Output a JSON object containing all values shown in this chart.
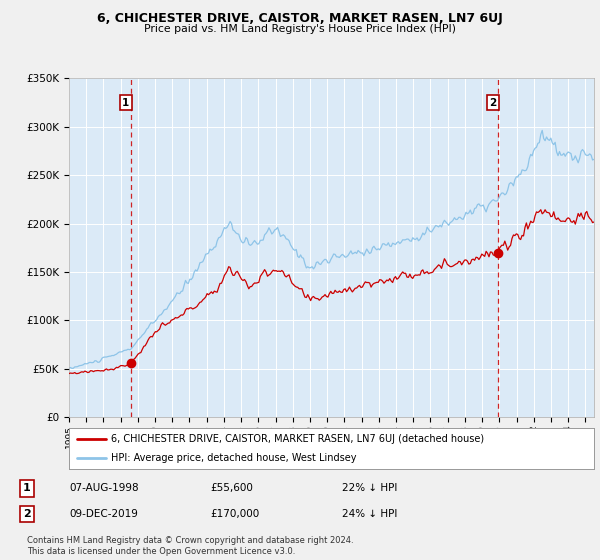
{
  "title": "6, CHICHESTER DRIVE, CAISTOR, MARKET RASEN, LN7 6UJ",
  "subtitle": "Price paid vs. HM Land Registry's House Price Index (HPI)",
  "legend_line1": "6, CHICHESTER DRIVE, CAISTOR, MARKET RASEN, LN7 6UJ (detached house)",
  "legend_line2": "HPI: Average price, detached house, West Lindsey",
  "annotation1_date": "07-AUG-1998",
  "annotation1_price": "£55,600",
  "annotation1_hpi": "22% ↓ HPI",
  "annotation2_date": "09-DEC-2019",
  "annotation2_price": "£170,000",
  "annotation2_hpi": "24% ↓ HPI",
  "footer": "Contains HM Land Registry data © Crown copyright and database right 2024.\nThis data is licensed under the Open Government Licence v3.0.",
  "purchase1_year": 1998.6,
  "purchase1_value": 55600,
  "purchase2_year": 2019.93,
  "purchase2_value": 170000,
  "hpi_color": "#8ec4e8",
  "property_color": "#cc0000",
  "dashed_line_color": "#cc0000",
  "plot_bg_color": "#dbeaf7",
  "grid_color": "#c8d8e8",
  "fig_bg_color": "#f0f0f0",
  "ylim": [
    0,
    350000
  ],
  "xlim_start": 1995.0,
  "xlim_end": 2025.5
}
